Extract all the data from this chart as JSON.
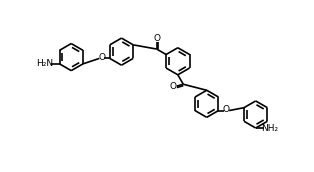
{
  "bg_color": "#ffffff",
  "line_color": "#000000",
  "line_width": 1.2,
  "figsize": [
    3.14,
    1.72
  ],
  "dpi": 100,
  "xlim": [
    0,
    10
  ],
  "ylim": [
    0,
    6.5
  ]
}
